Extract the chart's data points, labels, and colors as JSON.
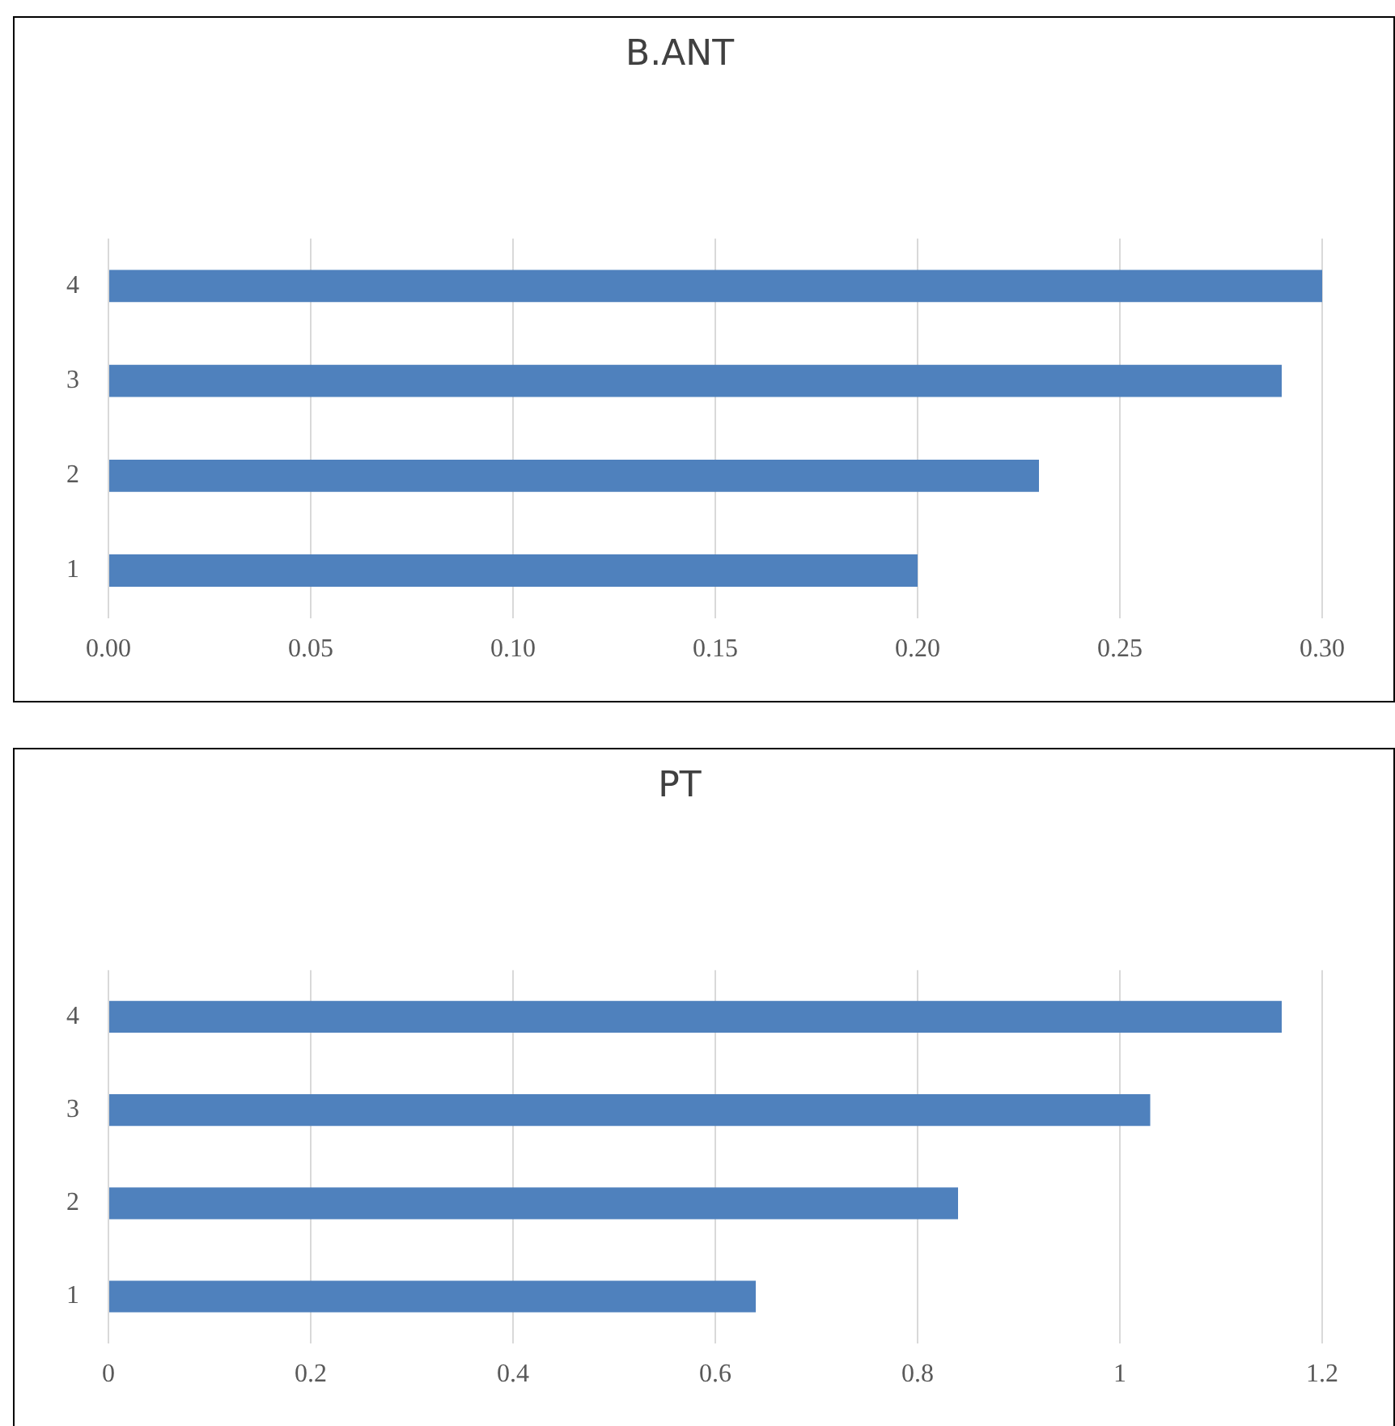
{
  "chart_data": [
    {
      "type": "bar",
      "orientation": "horizontal",
      "title": "B.ANT",
      "categories": [
        "4",
        "3",
        "2",
        "1"
      ],
      "values": [
        0.3,
        0.29,
        0.23,
        0.2
      ],
      "color": "#4f81bd",
      "xlim": [
        0,
        0.3
      ],
      "xticks": [
        {
          "value": 0,
          "label": "0.00"
        },
        {
          "value": 0.05,
          "label": "0.05"
        },
        {
          "value": 0.1,
          "label": "0.10"
        },
        {
          "value": 0.15,
          "label": "0.15"
        },
        {
          "value": 0.2,
          "label": "0.20"
        },
        {
          "value": 0.25,
          "label": "0.25"
        },
        {
          "value": 0.3,
          "label": "0.30"
        }
      ],
      "grid": "x"
    },
    {
      "type": "bar",
      "orientation": "horizontal",
      "title": "PT",
      "categories": [
        "4",
        "3",
        "2",
        "1"
      ],
      "values": [
        1.16,
        1.03,
        0.84,
        0.64
      ],
      "color": "#4f81bd",
      "xlim": [
        0,
        1.2
      ],
      "xticks": [
        0,
        0.2,
        0.4,
        0.6,
        0.8,
        1,
        1.2
      ],
      "grid": "x"
    }
  ]
}
